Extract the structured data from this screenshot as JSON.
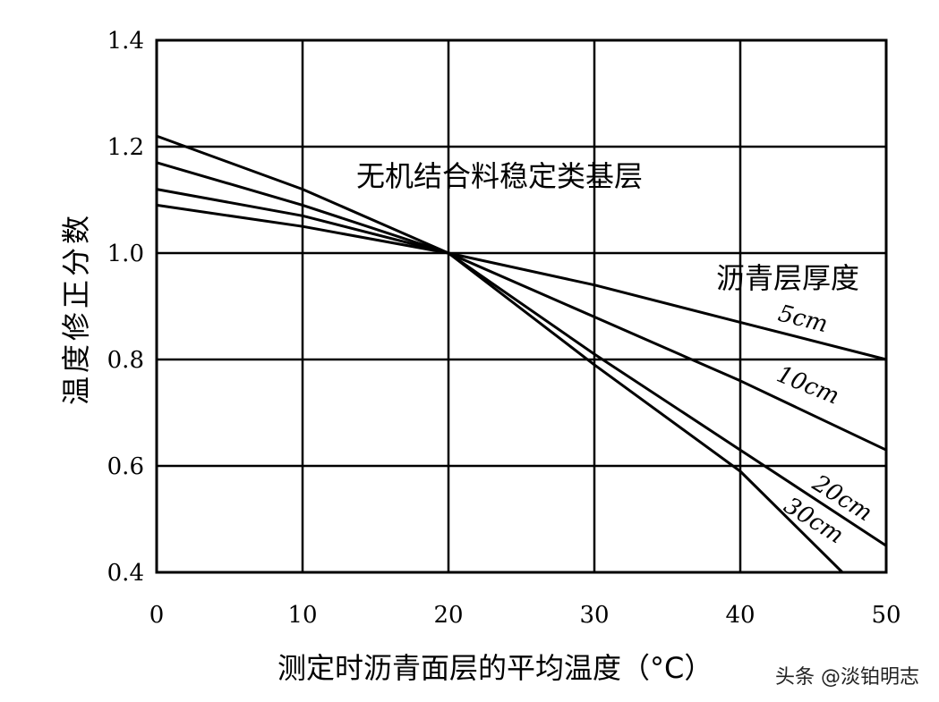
{
  "chart_data": {
    "type": "line",
    "title": "",
    "xlabel": "测定时沥青面层的平均温度（°C）",
    "ylabel": "温度修正分数",
    "xlim": [
      0,
      50
    ],
    "ylim": [
      0.4,
      1.4
    ],
    "x_ticks": [
      "0",
      "10",
      "20",
      "30",
      "40",
      "50"
    ],
    "y_ticks": [
      "1.4",
      "1.2",
      "1.0",
      "0.8",
      "0.6",
      "0.4"
    ],
    "grid": true,
    "annotation_main": "无机结合料稳定类基层",
    "legend_title": "沥青层厚度",
    "series": [
      {
        "name": "5cm",
        "x": [
          0,
          10,
          20,
          30,
          40,
          50
        ],
        "y": [
          1.09,
          1.05,
          1.0,
          0.94,
          0.87,
          0.8
        ]
      },
      {
        "name": "10cm",
        "x": [
          0,
          10,
          20,
          30,
          40,
          50
        ],
        "y": [
          1.12,
          1.07,
          1.0,
          0.88,
          0.76,
          0.63
        ]
      },
      {
        "name": "20cm",
        "x": [
          0,
          10,
          20,
          30,
          40,
          50
        ],
        "y": [
          1.17,
          1.09,
          1.0,
          0.81,
          0.63,
          0.45
        ]
      },
      {
        "name": "30cm",
        "x": [
          0,
          10,
          20,
          30,
          40,
          47
        ],
        "y": [
          1.22,
          1.12,
          1.0,
          0.79,
          0.59,
          0.4
        ]
      }
    ]
  },
  "watermark": "头条 @淡铂明志"
}
